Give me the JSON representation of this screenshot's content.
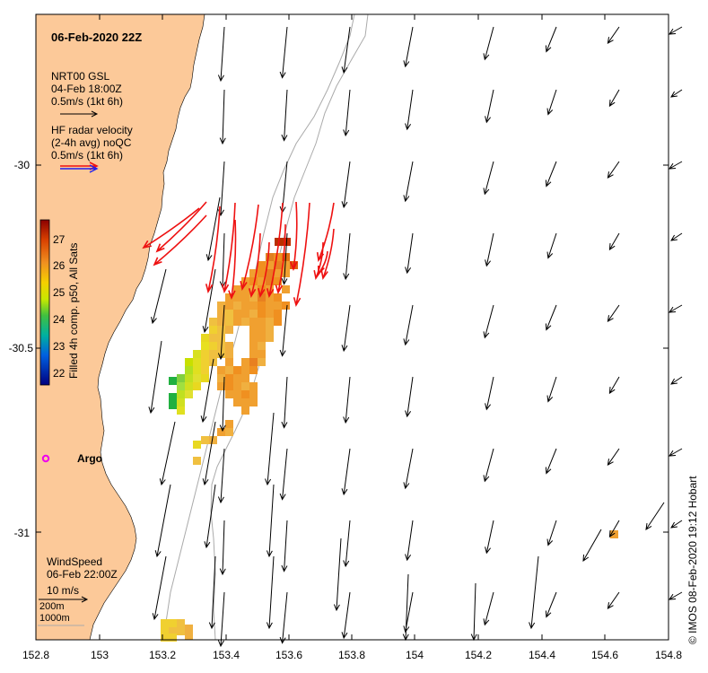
{
  "map": {
    "title": "06-Feb-2020 22Z",
    "legend": {
      "gsl_lines": [
        "NRT00 GSL",
        "04-Feb 18:00Z",
        "0.5m/s (1kt 6h)"
      ],
      "radar_lines": [
        "HF radar velocity",
        "(2-4h avg) noQC",
        "0.5m/s (1kt 6h)"
      ],
      "wind_lines": [
        "WindSpeed",
        "06-Feb 22:00Z",
        "10 m/s"
      ],
      "isobath_lines": [
        "200m",
        "1000m"
      ]
    },
    "colorbar": {
      "title": "Filled 4h comp. p50, All Sats",
      "ticks": [
        "27",
        "26",
        "25",
        "24",
        "23",
        "22"
      ]
    },
    "x_ticks": [
      "152.8",
      "153",
      "153.2",
      "153.4",
      "153.6",
      "153.8",
      "154",
      "154.2",
      "154.4",
      "154.6",
      "154.8"
    ],
    "y_ticks": [
      "-30",
      "-30.5",
      "-31"
    ],
    "argo_label": "Argo",
    "credit": "© IMOS 08-Feb-2020 19:12 Hobart",
    "colors": {
      "land": "#FCC999",
      "radar_arrow": "#EE1111",
      "wind_arrow": "#000000",
      "isobath": "#AAAAAA",
      "argo": "#EE00EE"
    }
  }
}
